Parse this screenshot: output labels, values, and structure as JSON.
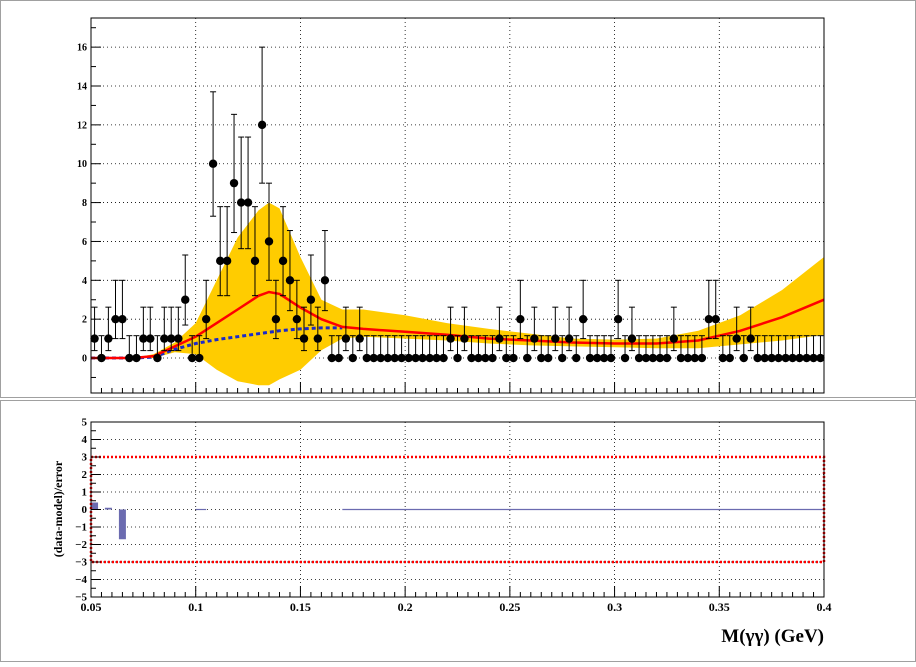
{
  "chart_data": [
    {
      "type": "scatter",
      "panel": "top",
      "title": "",
      "xlabel": "",
      "ylabel": "",
      "xlim": [
        0.05,
        0.4
      ],
      "ylim": [
        -1.8,
        17.5
      ],
      "y_ticks": [
        0,
        2,
        4,
        6,
        8,
        10,
        12,
        14,
        16
      ],
      "y_tick_labels": [
        "0",
        "2",
        "4",
        "6",
        "8",
        "10",
        "12",
        "14",
        "16"
      ],
      "grid": true,
      "colors": {
        "data": "#000000",
        "band": "#ffcc00",
        "total_model": "#ff0000",
        "background_model": "#1c2ac8"
      },
      "data_points": {
        "x": [
          0.0517,
          0.055,
          0.0583,
          0.0617,
          0.065,
          0.0683,
          0.0717,
          0.075,
          0.0783,
          0.0817,
          0.085,
          0.0883,
          0.0917,
          0.095,
          0.0983,
          0.1017,
          0.105,
          0.1083,
          0.1117,
          0.115,
          0.1183,
          0.1217,
          0.125,
          0.1283,
          0.1317,
          0.135,
          0.1383,
          0.1417,
          0.145,
          0.1483,
          0.1517,
          0.155,
          0.1583,
          0.1617,
          0.165,
          0.1683,
          0.1717,
          0.175,
          0.1783,
          0.1817,
          0.185,
          0.1883,
          0.1917,
          0.195,
          0.1983,
          0.2017,
          0.205,
          0.2083,
          0.2117,
          0.215,
          0.2183,
          0.2217,
          0.225,
          0.2283,
          0.2317,
          0.235,
          0.2383,
          0.2417,
          0.245,
          0.2483,
          0.2517,
          0.255,
          0.2583,
          0.2617,
          0.265,
          0.2683,
          0.2717,
          0.275,
          0.2783,
          0.2817,
          0.285,
          0.2883,
          0.2917,
          0.295,
          0.2983,
          0.3017,
          0.305,
          0.3083,
          0.3117,
          0.315,
          0.3183,
          0.3217,
          0.325,
          0.3283,
          0.3317,
          0.335,
          0.3383,
          0.3417,
          0.345,
          0.3483,
          0.3517,
          0.355,
          0.3583,
          0.3617,
          0.365,
          0.3683,
          0.3717,
          0.375,
          0.3783,
          0.3817,
          0.385,
          0.3883,
          0.3917,
          0.395,
          0.3983
        ],
        "y": [
          1,
          0,
          1,
          2,
          2,
          0,
          0,
          1,
          1,
          0,
          1,
          1,
          1,
          3,
          0,
          0,
          2,
          10,
          5,
          5,
          9,
          8,
          8,
          5,
          12,
          6,
          2,
          5,
          4,
          2,
          1,
          3,
          1,
          4,
          0,
          0,
          1,
          0,
          1,
          0,
          0,
          0,
          0,
          0,
          0,
          0,
          0,
          0,
          0,
          0,
          0,
          1,
          0,
          1,
          0,
          0,
          0,
          0,
          1,
          0,
          0,
          2,
          0,
          1,
          0,
          0,
          1,
          0,
          1,
          0,
          2,
          0,
          0,
          0,
          0,
          2,
          0,
          1,
          0,
          0,
          0,
          0,
          0,
          1,
          0,
          0,
          0,
          0,
          2,
          2,
          0,
          0,
          1,
          0,
          1,
          0,
          0,
          0,
          0,
          0,
          0,
          0,
          0,
          0,
          0
        ]
      },
      "total_model": {
        "x": [
          0.05,
          0.06,
          0.07,
          0.08,
          0.09,
          0.1,
          0.11,
          0.12,
          0.13,
          0.135,
          0.14,
          0.15,
          0.16,
          0.17,
          0.18,
          0.2,
          0.22,
          0.24,
          0.26,
          0.28,
          0.3,
          0.32,
          0.34,
          0.36,
          0.38,
          0.4
        ],
        "y": [
          0,
          0,
          0,
          0.1,
          0.6,
          1.1,
          1.8,
          2.5,
          3.2,
          3.4,
          3.3,
          2.6,
          2.0,
          1.6,
          1.5,
          1.35,
          1.2,
          1.0,
          0.9,
          0.8,
          0.75,
          0.75,
          0.9,
          1.4,
          2.1,
          3.0
        ]
      },
      "background_model": {
        "x": [
          0.05,
          0.07,
          0.08,
          0.09,
          0.1,
          0.11,
          0.12,
          0.13,
          0.14,
          0.15,
          0.16,
          0.17
        ],
        "y": [
          0,
          0,
          0.05,
          0.45,
          0.75,
          0.95,
          1.1,
          1.25,
          1.4,
          1.5,
          1.55,
          1.55
        ]
      },
      "error_band": {
        "x": [
          0.05,
          0.07,
          0.08,
          0.09,
          0.1,
          0.11,
          0.12,
          0.13,
          0.135,
          0.14,
          0.15,
          0.16,
          0.17,
          0.18,
          0.2,
          0.22,
          0.24,
          0.26,
          0.28,
          0.3,
          0.32,
          0.34,
          0.36,
          0.38,
          0.4
        ],
        "upper": [
          0,
          0,
          0.2,
          0.8,
          1.8,
          4.0,
          6.2,
          7.6,
          8.0,
          7.7,
          5.2,
          3.0,
          2.5,
          2.5,
          2.2,
          1.8,
          1.5,
          1.25,
          1.0,
          0.95,
          1.0,
          1.4,
          2.2,
          3.5,
          5.2
        ],
        "lower": [
          0,
          0,
          0,
          0.3,
          0.2,
          -0.6,
          -1.2,
          -1.4,
          -1.4,
          -1.1,
          -0.6,
          0.4,
          1.0,
          1.1,
          1.0,
          0.9,
          0.75,
          0.65,
          0.6,
          0.55,
          0.5,
          0.5,
          0.7,
          0.9,
          1.2
        ]
      }
    },
    {
      "type": "bar",
      "panel": "bottom",
      "xlabel": "M(γγ) (GeV)",
      "ylabel": "(data-model)/error",
      "xlim": [
        0.05,
        0.4
      ],
      "ylim": [
        -5,
        5
      ],
      "x_ticks": [
        0.05,
        0.1,
        0.15,
        0.2,
        0.25,
        0.3,
        0.35,
        0.4
      ],
      "x_tick_labels": [
        "0.05",
        "0.1",
        "0.15",
        "0.2",
        "0.25",
        "0.3",
        "0.35",
        "0.4"
      ],
      "y_ticks": [
        -5,
        -4,
        -3,
        -2,
        -1,
        0,
        1,
        2,
        3,
        4,
        5
      ],
      "y_tick_labels": [
        "−5",
        "−4",
        "−3",
        "−2",
        "−1",
        "0",
        "1",
        "2",
        "3",
        "4",
        "5"
      ],
      "grid": true,
      "reference_lines": [
        -3,
        3
      ],
      "colors": {
        "bars": "#6b6bb0",
        "reference_box": "#ff0000"
      },
      "pulls": {
        "x": [
          0.0517,
          0.0583,
          0.065
        ],
        "y": [
          0.4,
          0.1,
          -1.7
        ]
      },
      "zero_segments": [
        [
          0.1,
          0.105
        ],
        [
          0.17,
          0.4
        ]
      ]
    }
  ]
}
